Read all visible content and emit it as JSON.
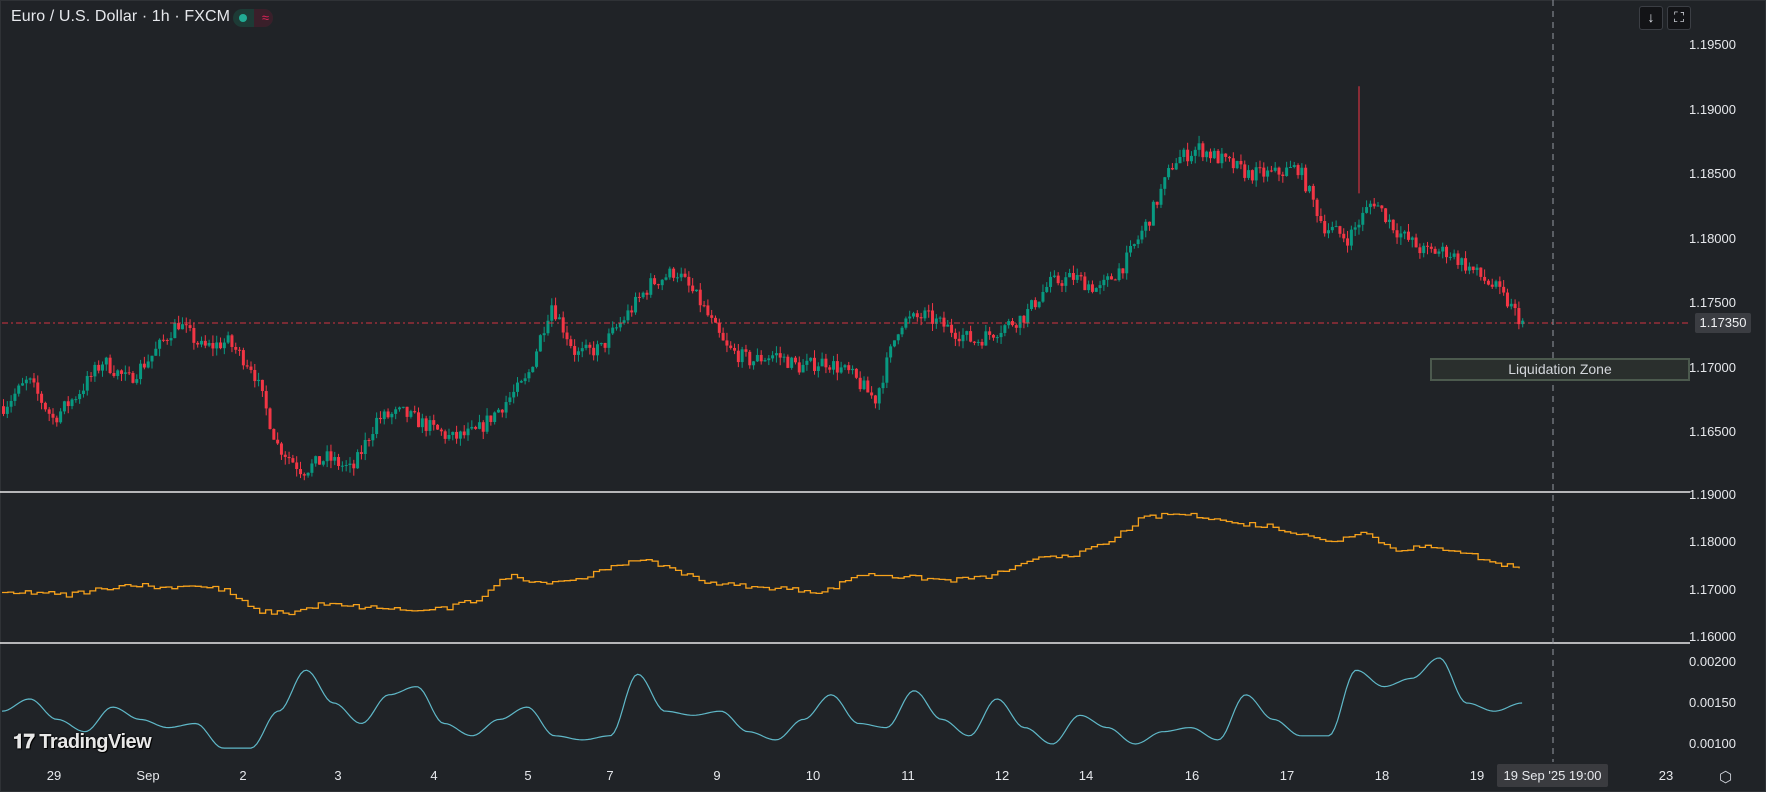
{
  "header": {
    "title": "Euro / U.S. Dollar · 1h · FXCM",
    "status_colors": {
      "market_open": "#22ab94",
      "delayed": "#e2245a"
    }
  },
  "toolbar": {
    "scroll_to_latest_icon": "↓",
    "autoscale_icon": "⛶"
  },
  "colors": {
    "background": "#202327",
    "up": "#089981",
    "down": "#f23645",
    "line2": "#f7a21b",
    "line3": "#5fb8c8",
    "separator": "#e8e8e8",
    "crosshair": "#9598a1"
  },
  "price_axis": {
    "main": [
      "1.19500",
      "1.19000",
      "1.18500",
      "1.18000",
      "1.17500",
      "1.17000",
      "1.16500"
    ],
    "current_price": "1.17350",
    "pane2": [
      "1.19000",
      "1.18000",
      "1.17000",
      "1.16000"
    ],
    "pane3": [
      "0.00200",
      "0.00150",
      "0.00100"
    ]
  },
  "time_axis": {
    "labels": [
      "29",
      "Sep",
      "2",
      "3",
      "4",
      "5",
      "7",
      "9",
      "10",
      "11",
      "12",
      "14",
      "16",
      "17",
      "18",
      "19",
      "23"
    ],
    "crosshair_label": "19 Sep '25   19:00"
  },
  "annotations": {
    "zone_label": "Liquidation Zone"
  },
  "branding": {
    "logo_text": "TradingView"
  },
  "chart_data": [
    {
      "type": "candlestick",
      "title": "Euro / U.S. Dollar · 1h · FXCM",
      "x_labels": [
        "29",
        "Sep",
        "2",
        "3",
        "4",
        "5",
        "7",
        "9",
        "10",
        "11",
        "12",
        "14",
        "16",
        "17",
        "18",
        "19"
      ],
      "ylim": [
        1.161,
        1.1965
      ],
      "key_levels": {
        "current_price": 1.1735,
        "liquidation_zone": 1.17
      },
      "path_close": [
        1.167,
        1.169,
        1.166,
        1.168,
        1.1705,
        1.169,
        1.171,
        1.1735,
        1.1715,
        1.172,
        1.17,
        1.164,
        1.162,
        1.163,
        1.162,
        1.166,
        1.1665,
        1.1655,
        1.1645,
        1.165,
        1.167,
        1.169,
        1.175,
        1.171,
        1.1715,
        1.174,
        1.1765,
        1.1775,
        1.175,
        1.1715,
        1.1705,
        1.171,
        1.17,
        1.1705,
        1.1695,
        1.1675,
        1.1735,
        1.174,
        1.173,
        1.172,
        1.173,
        1.174,
        1.1765,
        1.177,
        1.176,
        1.178,
        1.1815,
        1.186,
        1.187,
        1.186,
        1.185,
        1.185,
        1.1855,
        1.181,
        1.18,
        1.183,
        1.1805,
        1.179,
        1.179,
        1.1775,
        1.176,
        1.1735
      ],
      "approx_high": 1.1918,
      "approx_low": 1.161
    },
    {
      "type": "line",
      "title": "pane 2 (step line)",
      "ylim": [
        1.16,
        1.19
      ],
      "values": [
        1.169,
        1.1695,
        1.1688,
        1.17,
        1.1712,
        1.1705,
        1.1708,
        1.17,
        1.1655,
        1.165,
        1.1668,
        1.1665,
        1.166,
        1.1655,
        1.166,
        1.168,
        1.173,
        1.1715,
        1.172,
        1.174,
        1.1765,
        1.175,
        1.172,
        1.171,
        1.1705,
        1.17,
        1.1695,
        1.173,
        1.173,
        1.1725,
        1.172,
        1.1725,
        1.1745,
        1.177,
        1.1775,
        1.18,
        1.185,
        1.186,
        1.1855,
        1.184,
        1.1835,
        1.182,
        1.18,
        1.1825,
        1.1785,
        1.179,
        1.1785,
        1.176,
        1.1745
      ]
    },
    {
      "type": "line",
      "title": "pane 3 (oscillator)",
      "ylim": [
        0.0009,
        0.00215
      ],
      "values": [
        0.0014,
        0.00155,
        0.0013,
        0.00115,
        0.00145,
        0.0013,
        0.0012,
        0.00125,
        0.00095,
        0.00095,
        0.0014,
        0.0019,
        0.0015,
        0.00125,
        0.0016,
        0.0017,
        0.00125,
        0.0011,
        0.0013,
        0.00145,
        0.0011,
        0.00105,
        0.0011,
        0.00185,
        0.0014,
        0.00135,
        0.0014,
        0.00115,
        0.00105,
        0.0013,
        0.0016,
        0.00125,
        0.0012,
        0.00165,
        0.0013,
        0.0011,
        0.00155,
        0.0012,
        0.001,
        0.00135,
        0.0012,
        0.001,
        0.00115,
        0.0012,
        0.00105,
        0.0016,
        0.0013,
        0.0011,
        0.0011,
        0.0019,
        0.0017,
        0.0018,
        0.00205,
        0.0015,
        0.0014,
        0.0015
      ]
    }
  ]
}
